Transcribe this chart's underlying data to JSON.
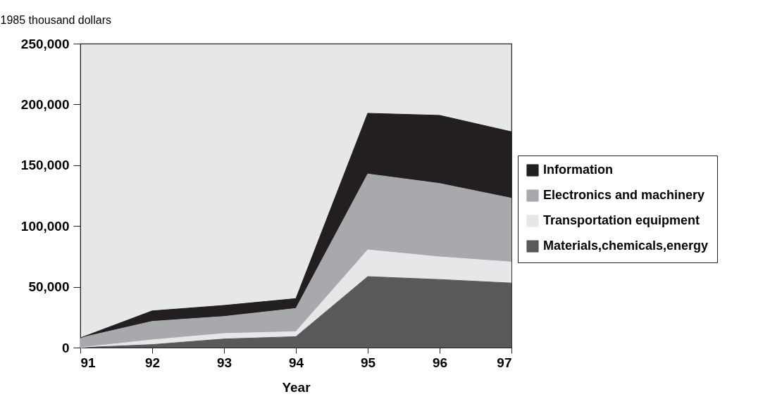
{
  "chart_data": {
    "type": "area",
    "stacked": true,
    "ylabel": "1985 thousand dollars",
    "xlabel": "Year",
    "x": [
      91,
      92,
      93,
      94,
      95,
      96,
      97
    ],
    "series": [
      {
        "name": "Materials,chemicals,energy",
        "color": "#58595b",
        "values": [
          0,
          2500,
          7100,
          9000,
          58400,
          56000,
          53100
        ]
      },
      {
        "name": "Transportation equipment",
        "color": "#e6e7e8",
        "values": [
          0,
          3900,
          4500,
          4100,
          22000,
          18600,
          17300
        ]
      },
      {
        "name": "Electronics and machinery",
        "color": "#a7a9ac",
        "values": [
          8000,
          15200,
          14000,
          19100,
          62400,
          60400,
          52500
        ]
      },
      {
        "name": "Information",
        "color": "#231f20",
        "values": [
          0,
          8600,
          9100,
          8100,
          49900,
          56000,
          54600
        ]
      }
    ],
    "xlim": [
      91,
      97
    ],
    "xticks": [
      91,
      92,
      93,
      94,
      95,
      96,
      97
    ],
    "ylim": [
      0,
      250000
    ],
    "yticks": [
      0,
      {
        "value": 50000,
        "label": "50,000"
      },
      {
        "value": 100000,
        "label": "100,000"
      },
      {
        "value": 150000,
        "label": "150,000"
      },
      {
        "value": 200000,
        "label": "200,000"
      },
      {
        "value": 250000,
        "label": "250,000"
      }
    ],
    "grid": false,
    "legend": "right"
  }
}
